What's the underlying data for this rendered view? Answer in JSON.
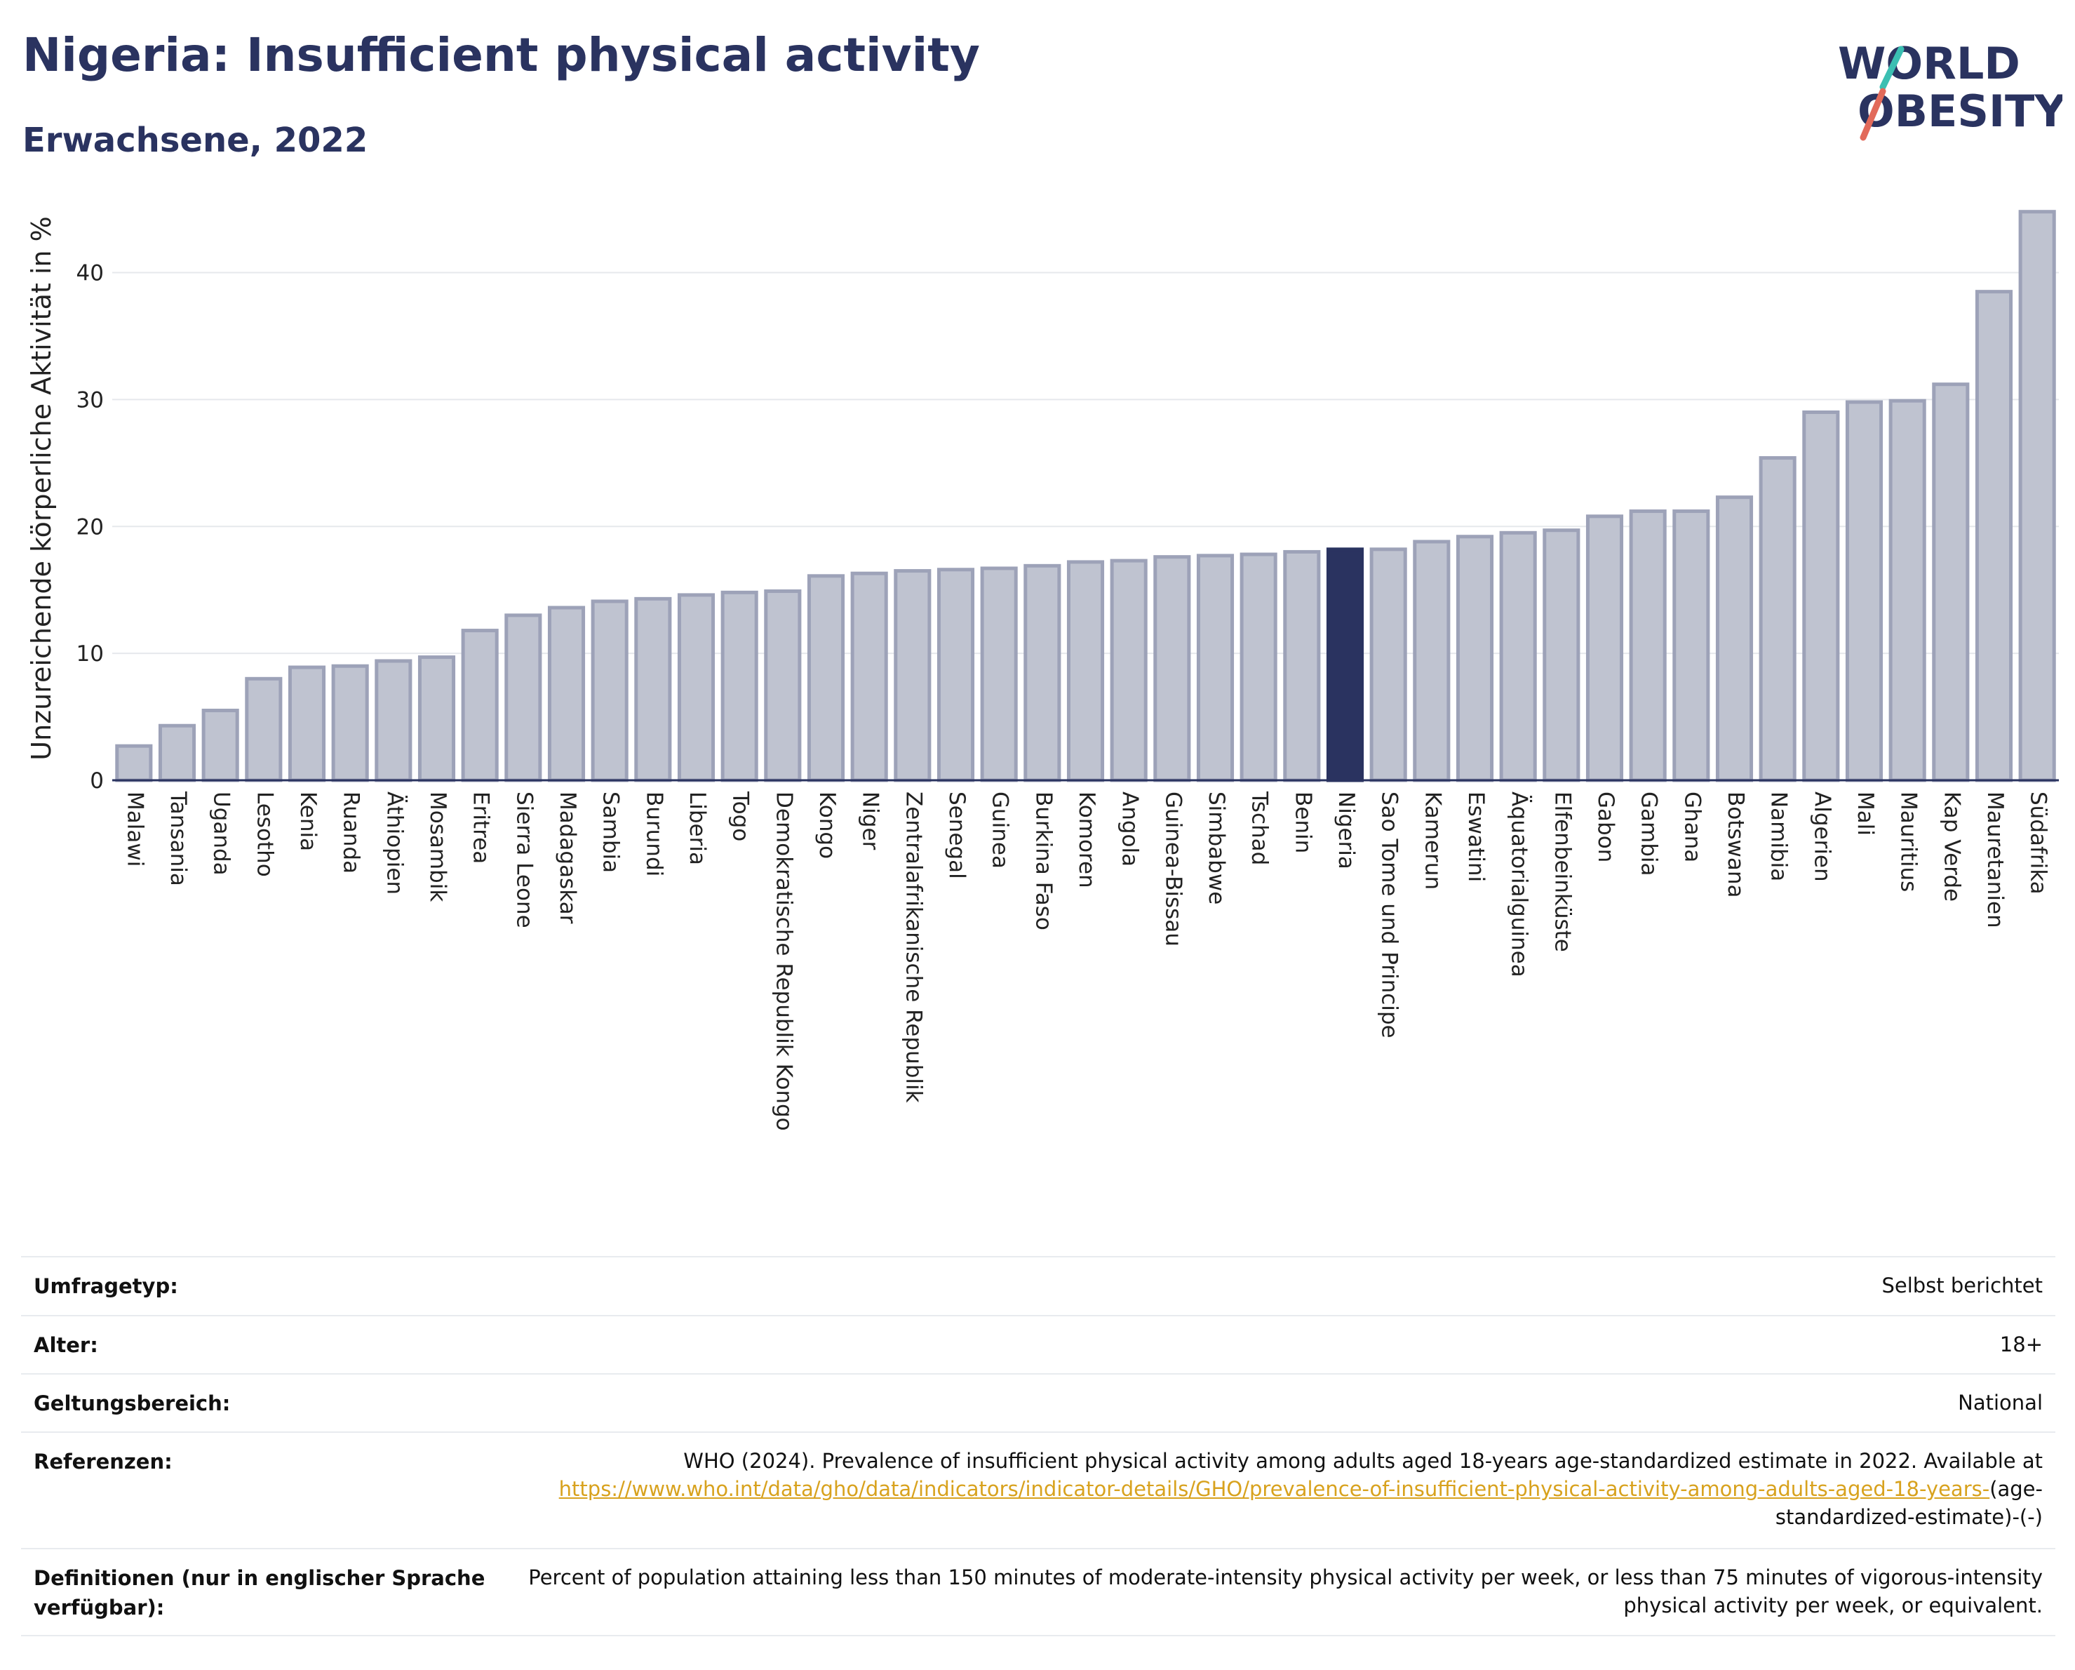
{
  "header": {
    "title": "Nigeria: Insufficient physical activity",
    "subtitle": "Erwachsene, 2022"
  },
  "logo": {
    "line1": "WORLD",
    "line2": "OBESITY"
  },
  "colors": {
    "bar": "#bfc3d0",
    "bar_border": "#9da2b8",
    "highlight": "#2a3360",
    "title": "#2a3360",
    "link": "#d8a21e"
  },
  "chart_data": {
    "type": "bar",
    "title": "Nigeria: Insufficient physical activity",
    "subtitle": "Erwachsene, 2022",
    "xlabel": "",
    "ylabel": "Unzureichende körperliche Aktivität in %",
    "ylim": [
      0,
      46
    ],
    "yticks": [
      0,
      10,
      20,
      30,
      40
    ],
    "grid": true,
    "highlight": "Nigeria",
    "categories": [
      "Malawi",
      "Tansania",
      "Uganda",
      "Lesotho",
      "Kenia",
      "Ruanda",
      "Äthiopien",
      "Mosambik",
      "Eritrea",
      "Sierra Leone",
      "Madagaskar",
      "Sambia",
      "Burundi",
      "Liberia",
      "Togo",
      "Demokratische Republik Kongo",
      "Kongo",
      "Niger",
      "Zentralafrikanische Republik",
      "Senegal",
      "Guinea",
      "Burkina Faso",
      "Komoren",
      "Angola",
      "Guinea-Bissau",
      "Simbabwe",
      "Tschad",
      "Benin",
      "Nigeria",
      "Sao Tome und Principe",
      "Kamerun",
      "Eswatini",
      "Äquatorialguinea",
      "Elfenbeinküste",
      "Gabon",
      "Gambia",
      "Ghana",
      "Botswana",
      "Namibia",
      "Algerien",
      "Mali",
      "Mauritius",
      "Kap Verde",
      "Mauretanien",
      "Südafrika"
    ],
    "values": [
      2.7,
      4.3,
      5.5,
      8.0,
      8.9,
      9.0,
      9.4,
      9.7,
      11.8,
      13.0,
      13.6,
      14.1,
      14.3,
      14.6,
      14.8,
      14.9,
      16.1,
      16.3,
      16.5,
      16.6,
      16.7,
      16.9,
      17.2,
      17.3,
      17.6,
      17.7,
      17.8,
      18.0,
      18.2,
      18.2,
      18.8,
      19.2,
      19.5,
      19.7,
      20.8,
      21.2,
      21.2,
      22.3,
      25.4,
      29.0,
      29.8,
      29.9,
      31.2,
      38.5,
      44.8
    ]
  },
  "info": {
    "rows": [
      {
        "key": "Umfragetyp:",
        "value": "Selbst berichtet"
      },
      {
        "key": "Alter:",
        "value": "18+"
      },
      {
        "key": "Geltungsbereich:",
        "value": "National"
      }
    ],
    "references": {
      "key": "Referenzen:",
      "text": "WHO (2024). Prevalence of insufficient physical activity among adults aged 18-years age-standardized estimate in 2022. Available at",
      "link": "https://www.who.int/data/gho/data/indicators/indicator-details/GHO/prevalence-of-insufficient-physical-activity-among-adults-aged-18-years-",
      "suffix": "(age-standardized-estimate)-(-)"
    },
    "definitions": {
      "key": "Definitionen (nur in englischer Sprache verfügbar):",
      "value": "Percent of population attaining less than 150 minutes of moderate-intensity physical activity per week, or less than 75 minutes of vigorous-intensity physical activity per week, or equivalent."
    }
  }
}
